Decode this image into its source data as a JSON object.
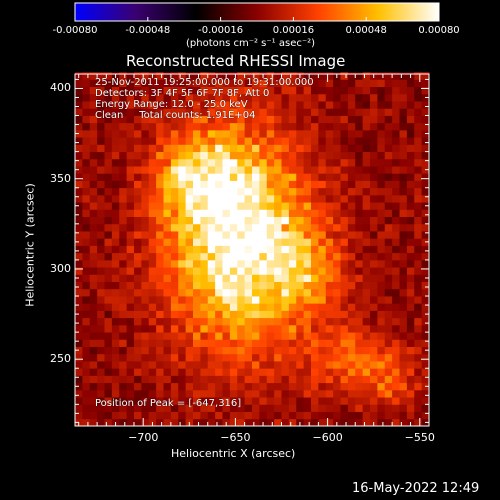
{
  "colorbar": {
    "ticks": [
      "-0.00080",
      "-0.00048",
      "-0.00016",
      "0.00016",
      "0.00048",
      "0.00080"
    ],
    "tick_values": [
      -0.0008,
      -0.00048,
      -0.00016,
      0.00016,
      0.00048,
      0.0008
    ],
    "range": [
      -0.0008,
      0.0008
    ],
    "units": "(photons cm⁻² s⁻¹ asec⁻²)",
    "colors": [
      "#0000ff",
      "#3a0070",
      "#000000",
      "#8a0000",
      "#ff4000",
      "#ffc000",
      "#ffffff"
    ]
  },
  "chart_data": {
    "type": "heatmap",
    "title": "Reconstructed RHESSI Image",
    "xlabel": "Heliocentric X (arcsec)",
    "ylabel": "Heliocentric Y (arcsec)",
    "xlim": [
      -737,
      -545
    ],
    "ylim": [
      213,
      408
    ],
    "x_ticks": [
      -700,
      -650,
      -600,
      -550
    ],
    "y_ticks": [
      250,
      300,
      350,
      400
    ],
    "peak": {
      "x": -647,
      "y": 316
    },
    "sources": [
      {
        "x": -648,
        "y": 316,
        "sx": 26,
        "sy": 40,
        "amp": 0.00085
      },
      {
        "x": -670,
        "y": 350,
        "sx": 16,
        "sy": 16,
        "amp": 0.00045
      },
      {
        "x": -612,
        "y": 300,
        "sx": 14,
        "sy": 16,
        "amp": 0.0003
      },
      {
        "x": -588,
        "y": 250,
        "sx": 16,
        "sy": 12,
        "amp": 0.0003
      },
      {
        "x": -566,
        "y": 238,
        "sx": 10,
        "sy": 12,
        "amp": 0.0002
      }
    ],
    "background_level": 0.0001
  },
  "info": {
    "line1": "25-Nov-2011 19:25:00.000 to 19:31:00.000",
    "line2": "Detectors: 3F 4F 5F 6F 7F 8F, Att 0",
    "line3": "Energy Range: 12.0 - 25.0 keV",
    "line4": "Clean     Total counts: 1.91E+04",
    "peak_label": "Position of Peak = [-647,316]"
  },
  "footer": {
    "timestamp": "16-May-2022 12:49"
  }
}
